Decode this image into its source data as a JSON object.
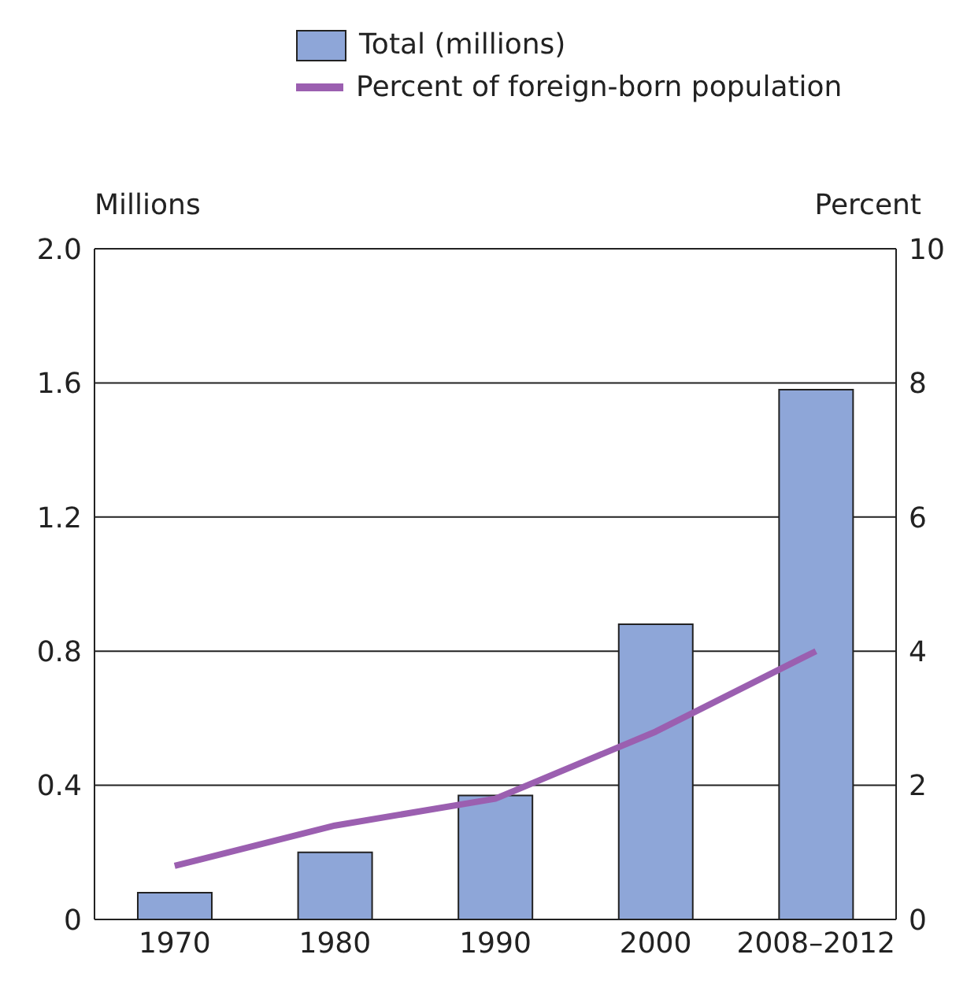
{
  "chart_data": {
    "type": "bar",
    "categories": [
      "1970",
      "1980",
      "1990",
      "2000",
      "2008–2012"
    ],
    "ylabel": "Millions",
    "y2label": "Percent",
    "series": [
      {
        "name": "Total (millions)",
        "color": "#8ea6d8",
        "values": [
          0.08,
          0.2,
          0.37,
          0.88,
          1.58
        ]
      },
      {
        "name": "Percent of foreign-born population",
        "type": "line",
        "axis": "y2",
        "color": "#9b5fb0",
        "values": [
          0.8,
          1.4,
          1.8,
          2.8,
          4.0
        ]
      }
    ],
    "ylim": [
      0,
      2
    ],
    "yticks": [
      0,
      0.4,
      0.8,
      1.2,
      1.6,
      {
        "value": 2,
        "label": "2.0"
      }
    ],
    "y2lim": [
      0,
      10
    ],
    "y2ticks": [
      0,
      2,
      4,
      6,
      8,
      10
    ],
    "grid": "y",
    "legend": "top",
    "marker": "none",
    "line_style": "solid"
  }
}
